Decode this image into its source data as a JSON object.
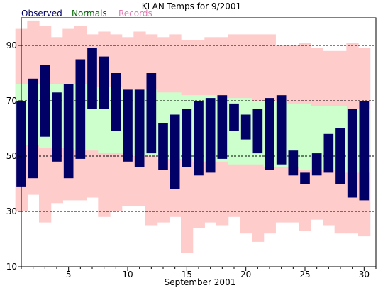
{
  "chart_data": {
    "type": "bar",
    "title": "KLAN Temps for 9/2001",
    "xlabel": "September 2001",
    "ylabel": "",
    "ylim": [
      10,
      100
    ],
    "xlim": [
      1,
      31
    ],
    "grid_y": [
      30,
      50,
      70,
      90
    ],
    "y_ticks": [
      "10",
      "30",
      "50",
      "70",
      "90"
    ],
    "x_ticks": [
      {
        "day": 5,
        "label": "5"
      },
      {
        "day": 10,
        "label": "10"
      },
      {
        "day": 15,
        "label": "15"
      },
      {
        "day": 20,
        "label": "20"
      },
      {
        "day": 25,
        "label": "25"
      },
      {
        "day": 30,
        "label": "30"
      }
    ],
    "legend": [
      {
        "name": "Observed",
        "color": "#000066"
      },
      {
        "name": "Normals",
        "color": "#006600"
      },
      {
        "name": "Records",
        "color": "#e07ab0"
      }
    ],
    "days": [
      1,
      2,
      3,
      4,
      5,
      6,
      7,
      8,
      9,
      10,
      11,
      12,
      13,
      14,
      15,
      16,
      17,
      18,
      19,
      20,
      21,
      22,
      23,
      24,
      25,
      26,
      27,
      28,
      29,
      30
    ],
    "series": [
      {
        "name": "Records",
        "color": "#ffcccc",
        "high": [
          96,
          99,
          97,
          93,
          96,
          97,
          94,
          95,
          94,
          93,
          95,
          94,
          93,
          94,
          92,
          92,
          93,
          93,
          94,
          94,
          94,
          94,
          90,
          90,
          91,
          89,
          88,
          88,
          91,
          89
        ],
        "low": [
          30,
          36,
          26,
          33,
          34,
          34,
          35,
          28,
          30,
          32,
          32,
          25,
          26,
          28,
          15,
          24,
          26,
          25,
          28,
          22,
          19,
          22,
          26,
          26,
          23,
          27,
          25,
          22,
          22,
          21
        ]
      },
      {
        "name": "Normals",
        "color": "#ccffcc",
        "high": [
          76,
          76,
          76,
          76,
          76,
          76,
          75,
          75,
          75,
          74,
          74,
          74,
          73,
          73,
          72,
          72,
          72,
          71,
          71,
          71,
          70,
          70,
          70,
          69,
          69,
          68,
          68,
          68,
          67,
          67
        ],
        "low": [
          54,
          54,
          53,
          53,
          53,
          52,
          52,
          51,
          51,
          51,
          50,
          50,
          49,
          49,
          49,
          48,
          48,
          48,
          47,
          47,
          47,
          46,
          46,
          46,
          45,
          45,
          45,
          44,
          44,
          44
        ]
      },
      {
        "name": "Observed",
        "color": "#000066",
        "high": [
          70,
          78,
          83,
          73,
          76,
          85,
          89,
          86,
          80,
          74,
          74,
          80,
          62,
          65,
          67,
          70,
          71,
          72,
          69,
          65,
          67,
          71,
          72,
          52,
          44,
          51,
          58,
          60,
          67,
          70
        ],
        "low": [
          39,
          42,
          57,
          48,
          42,
          49,
          67,
          67,
          59,
          48,
          46,
          51,
          45,
          38,
          46,
          43,
          44,
          49,
          59,
          56,
          51,
          45,
          47,
          43,
          40,
          43,
          44,
          40,
          35,
          34
        ]
      }
    ]
  }
}
